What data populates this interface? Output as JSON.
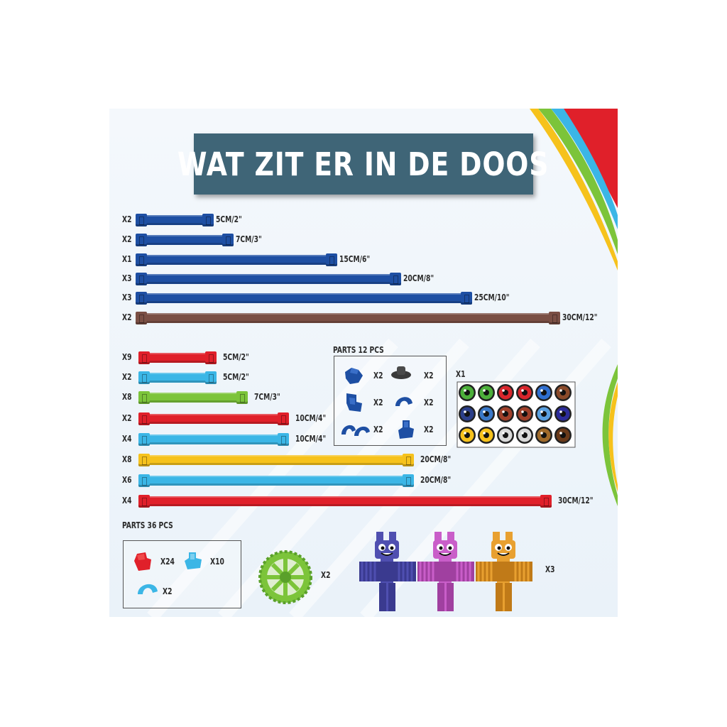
{
  "title": "WAT ZIT ER IN DE DOOS",
  "colors": {
    "title_bg": "#3f6577",
    "dark_blue": "#1e4fa3",
    "brown": "#7a4f44",
    "red": "#e0202a",
    "light_blue": "#3bb6e6",
    "green": "#7cc43a",
    "yellow": "#f6c21c"
  },
  "top_strips": [
    {
      "qty": "X2",
      "length": "5CM/2\"",
      "color": "dark_blue",
      "scale": 1
    },
    {
      "qty": "X2",
      "length": "7CM/3\"",
      "color": "dark_blue",
      "scale": 1.4
    },
    {
      "qty": "X1",
      "length": "15CM/6\"",
      "color": "dark_blue",
      "scale": 3
    },
    {
      "qty": "X3",
      "length": "20CM/8\"",
      "color": "dark_blue",
      "scale": 4
    },
    {
      "qty": "X3",
      "length": "25CM/10\"",
      "color": "dark_blue",
      "scale": 5
    },
    {
      "qty": "X2",
      "length": "30CM/12\"",
      "color": "brown",
      "scale": 6
    }
  ],
  "bottom_strips": [
    {
      "qty": "X9",
      "length": "5CM/2\"",
      "color": "red",
      "scale": 1
    },
    {
      "qty": "X2",
      "length": "5CM/2\"",
      "color": "light_blue",
      "scale": 1
    },
    {
      "qty": "X8",
      "length": "7CM/3\"",
      "color": "green",
      "scale": 1.4
    },
    {
      "qty": "X2",
      "length": "10CM/4\"",
      "color": "red",
      "scale": 2
    },
    {
      "qty": "X4",
      "length": "10CM/4\"",
      "color": "light_blue",
      "scale": 2
    },
    {
      "qty": "X8",
      "length": "20CM/8\"",
      "color": "yellow",
      "scale": 4
    },
    {
      "qty": "X6",
      "length": "20CM/8\"",
      "color": "light_blue",
      "scale": 4
    },
    {
      "qty": "X4",
      "length": "30CM/12\"",
      "color": "red",
      "scale": 6
    }
  ],
  "parts12": {
    "label": "PARTS  12 PCS",
    "items": [
      {
        "icon": "blue-connector-icon",
        "qty": "X2"
      },
      {
        "icon": "gray-base-icon",
        "qty": "X2"
      },
      {
        "icon": "blue-corner-connector-icon",
        "qty": "X2"
      },
      {
        "icon": "blue-hook-icon",
        "qty": "X2"
      },
      {
        "icon": "blue-double-hook-icon",
        "qty": "X2"
      },
      {
        "icon": "blue-joint-icon",
        "qty": "X2"
      }
    ]
  },
  "eyes": {
    "qty": "X1",
    "icon": "eye-stickers-icon"
  },
  "parts36": {
    "label": "PARTS  36 PCS",
    "items": [
      {
        "icon": "red-connector-icon",
        "qty": "X24"
      },
      {
        "icon": "light-blue-connector-icon",
        "qty": "X10"
      },
      {
        "icon": "light-blue-hook-icon",
        "qty": "X2"
      }
    ]
  },
  "wheel": {
    "qty": "X2",
    "icon": "green-wheel-icon"
  },
  "figures": {
    "qty": "X3",
    "icons": [
      "purple-figure-icon",
      "pink-figure-icon",
      "orange-figure-icon"
    ]
  }
}
